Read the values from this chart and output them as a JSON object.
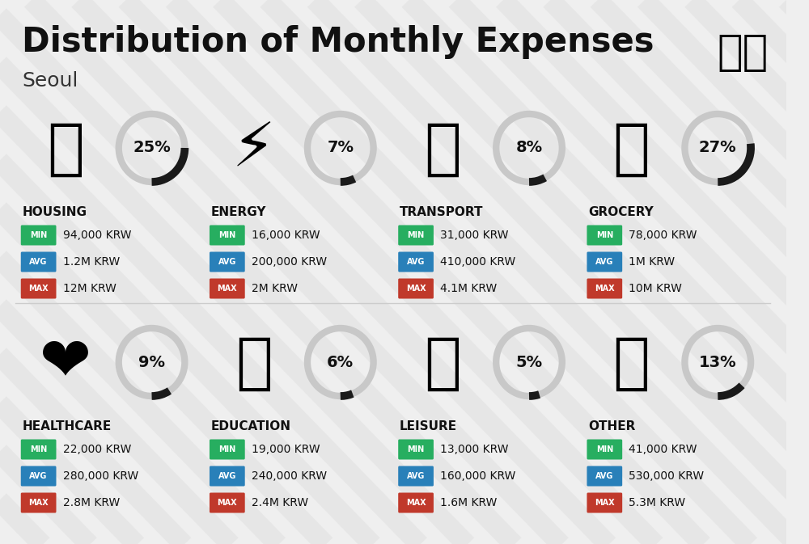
{
  "title": "Distribution of Monthly Expenses",
  "subtitle": "Seoul",
  "bg_color": "#efefef",
  "stripe_color": "#e0e0e0",
  "categories": [
    {
      "name": "HOUSING",
      "percent": 25,
      "icon": "🏢",
      "min": "94,000 KRW",
      "avg": "1.2M KRW",
      "max": "12M KRW",
      "col": 0,
      "row": 0
    },
    {
      "name": "ENERGY",
      "percent": 7,
      "icon": "⚡",
      "min": "16,000 KRW",
      "avg": "200,000 KRW",
      "max": "2M KRW",
      "col": 1,
      "row": 0
    },
    {
      "name": "TRANSPORT",
      "percent": 8,
      "icon": "🚌",
      "min": "31,000 KRW",
      "avg": "410,000 KRW",
      "max": "4.1M KRW",
      "col": 2,
      "row": 0
    },
    {
      "name": "GROCERY",
      "percent": 27,
      "icon": "🛒",
      "min": "78,000 KRW",
      "avg": "1M KRW",
      "max": "10M KRW",
      "col": 3,
      "row": 0
    },
    {
      "name": "HEALTHCARE",
      "percent": 9,
      "icon": "❤",
      "min": "22,000 KRW",
      "avg": "280,000 KRW",
      "max": "2.8M KRW",
      "col": 0,
      "row": 1
    },
    {
      "name": "EDUCATION",
      "percent": 6,
      "icon": "🎓",
      "min": "19,000 KRW",
      "avg": "240,000 KRW",
      "max": "2.4M KRW",
      "col": 1,
      "row": 1
    },
    {
      "name": "LEISURE",
      "percent": 5,
      "icon": "🛑",
      "min": "13,000 KRW",
      "avg": "160,000 KRW",
      "max": "1.6M KRW",
      "col": 2,
      "row": 1
    },
    {
      "name": "OTHER",
      "percent": 13,
      "icon": "👛",
      "min": "41,000 KRW",
      "avg": "530,000 KRW",
      "max": "5.3M KRW",
      "col": 3,
      "row": 1
    }
  ],
  "min_color": "#27ae60",
  "avg_color": "#2980b9",
  "max_color": "#c0392b",
  "donut_bg_color": "#c8c8c8",
  "donut_fg_color": "#1a1a1a",
  "title_fontsize": 30,
  "subtitle_fontsize": 18,
  "cat_fontsize": 11,
  "val_fontsize": 10,
  "badge_fontsize": 7,
  "pct_fontsize": 14
}
